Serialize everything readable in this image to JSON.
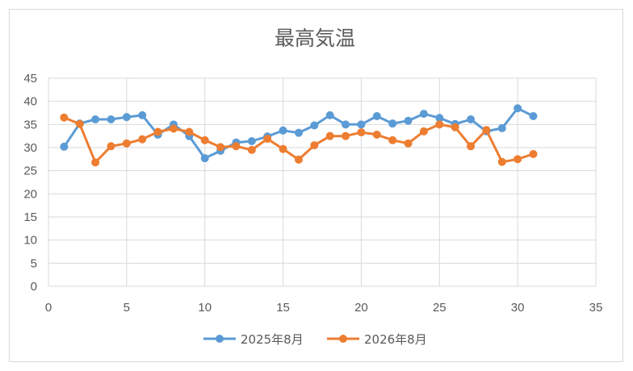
{
  "chart_data": {
    "type": "scatter",
    "title": "最高気温",
    "xlabel": "",
    "ylabel": "",
    "xlim": [
      0,
      35
    ],
    "ylim": [
      0,
      45
    ],
    "xticks": [
      0,
      5,
      10,
      15,
      20,
      25,
      30,
      35
    ],
    "yticks": [
      0,
      5,
      10,
      15,
      20,
      25,
      30,
      35,
      40,
      45
    ],
    "grid": true,
    "legend_position": "bottom",
    "series": [
      {
        "name": "2025年8月",
        "color": "#5b9bd5",
        "x": [
          1,
          2,
          3,
          4,
          5,
          6,
          7,
          8,
          9,
          10,
          11,
          12,
          13,
          14,
          15,
          16,
          17,
          18,
          19,
          20,
          21,
          22,
          23,
          24,
          25,
          26,
          27,
          28,
          29,
          30,
          31
        ],
        "values": [
          30.2,
          35.2,
          36.1,
          36.1,
          36.6,
          37.0,
          32.8,
          35.0,
          32.5,
          27.7,
          29.3,
          31.1,
          31.4,
          32.4,
          33.7,
          33.2,
          34.8,
          37.0,
          35.0,
          35.0,
          36.8,
          35.2,
          35.8,
          37.3,
          36.4,
          35.1,
          36.1,
          33.5,
          34.2,
          38.5,
          36.8
        ]
      },
      {
        "name": "2026年8月",
        "color": "#ed7d31",
        "x": [
          1,
          2,
          3,
          4,
          5,
          6,
          7,
          8,
          9,
          10,
          11,
          12,
          13,
          14,
          15,
          16,
          17,
          18,
          19,
          20,
          21,
          22,
          23,
          24,
          25,
          26,
          27,
          28,
          29,
          30,
          31
        ],
        "values": [
          36.5,
          35.1,
          26.8,
          30.3,
          30.9,
          31.8,
          33.4,
          34.1,
          33.4,
          31.6,
          30.1,
          30.3,
          29.5,
          31.9,
          29.7,
          27.4,
          30.5,
          32.5,
          32.5,
          33.3,
          32.8,
          31.6,
          30.9,
          33.5,
          35.0,
          34.4,
          30.3,
          33.8,
          26.9,
          27.5,
          28.6
        ]
      }
    ]
  }
}
